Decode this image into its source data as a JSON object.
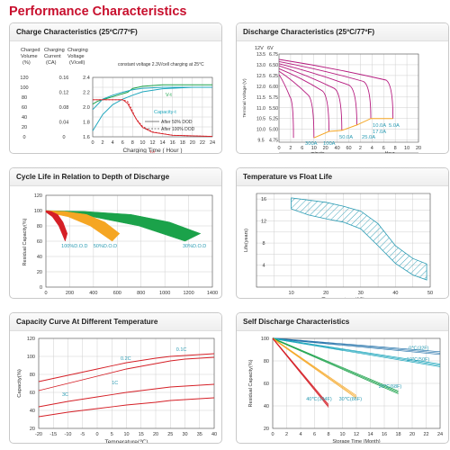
{
  "page_title": "Performance Characteristics",
  "colors": {
    "title": "#c8102e",
    "red": "#d51f26",
    "magenta": "#b5197e",
    "cyan": "#1fa7bd",
    "green": "#1ba24a",
    "orange": "#f5a623",
    "dark": "#333333"
  },
  "chart_data": [
    {
      "id": "charge",
      "type": "line",
      "title": "Charge Characteristics (25ºC/77ºF)",
      "col_labels": [
        "Charged",
        "Charging",
        "Charging"
      ],
      "col_labels2": [
        "Volume",
        "Current",
        "Voltage"
      ],
      "col_units": [
        "(%)",
        "(CA)",
        "(V/cell)"
      ],
      "annotation": "constant voltage 2.3V/cell charging at 25°C",
      "xlabel": "Charging Time ( Hour )",
      "x_ticks": [
        0,
        2,
        4,
        6,
        8,
        10,
        12,
        14,
        16,
        18,
        20,
        22,
        24
      ],
      "xlim": [
        0,
        24
      ],
      "left_ticks": [
        "120",
        "100",
        "80",
        "60",
        "40",
        "20",
        "0"
      ],
      "mid_ticks": [
        "0.16",
        "0.12",
        "0.08",
        "0.04",
        "0"
      ],
      "right_ticks": [
        "2.4",
        "2.2",
        "2.0",
        "1.8",
        "1.6"
      ],
      "series_labels": [
        "V-t",
        "Capacity-t",
        "I-t"
      ],
      "legend": [
        "After 50% DOD",
        "After 100% DOD"
      ],
      "series": [
        {
          "x": [
            0,
            1,
            3,
            5,
            7,
            8,
            10,
            14,
            20,
            24
          ],
          "y": [
            2.04,
            2.08,
            2.12,
            2.16,
            2.2,
            2.25,
            2.28,
            2.3,
            2.3,
            2.3
          ]
        },
        {
          "x": [
            0,
            2,
            4,
            6,
            8,
            10,
            14,
            20,
            24
          ],
          "y": [
            55,
            76,
            84,
            90,
            95,
            98,
            100,
            100,
            100
          ]
        },
        {
          "x": [
            0,
            2,
            4,
            6,
            8,
            10,
            14,
            20,
            24
          ],
          "y": [
            12,
            45,
            65,
            76,
            84,
            91,
            97,
            100,
            100
          ]
        },
        {
          "x": [
            0,
            4,
            6,
            7,
            8,
            9,
            10,
            12,
            16,
            24
          ],
          "y": [
            0.1,
            0.1,
            0.1,
            0.09,
            0.065,
            0.042,
            0.025,
            0.012,
            0.004,
            0.001
          ]
        },
        {
          "x": [
            0,
            5,
            6,
            7,
            7.8,
            8.6,
            10,
            12,
            16,
            24
          ],
          "y": [
            0.1,
            0.1,
            0.1,
            0.095,
            0.075,
            0.05,
            0.028,
            0.013,
            0.004,
            0.001
          ]
        }
      ]
    },
    {
      "id": "discharge",
      "type": "line",
      "title": "Discharge Characteristics (25ºC/77ºF)",
      "axis_top": [
        "12V",
        "6V"
      ],
      "ylabel": "Terminal Voltage (V)",
      "xlabel": "Discharging Time",
      "x_units": [
        "minute",
        "Hour"
      ],
      "x_ticks": [
        "0",
        "2",
        "6",
        "10",
        "20",
        "40",
        "60",
        "2",
        "4",
        "6",
        "8",
        "10",
        "20"
      ],
      "y12_ticks": [
        "13.5",
        "13.0",
        "12.5",
        "12.0",
        "11.5",
        "11.0",
        "10.5",
        "10.0",
        "9.5"
      ],
      "y6_ticks": [
        "6.75",
        "6.50",
        "6.25",
        "6.00",
        "5.75",
        "5.50",
        "5.25",
        "5.00",
        "4.75"
      ],
      "ylim": [
        9.4,
        13.5
      ],
      "curve_labels": [
        "10.0A",
        "5.0A",
        "17.0A",
        "25.0A",
        "50.0A",
        "100A",
        "300A"
      ],
      "series": [
        {
          "name": "300A",
          "end_x": 1.25,
          "end_v": 9.6
        },
        {
          "name": "100A",
          "end_x": 3.0,
          "end_v": 9.6
        },
        {
          "name": "50.0A",
          "end_x": 4.3,
          "end_v": 9.9
        },
        {
          "name": "25.0A",
          "end_x": 5.4,
          "end_v": 9.95
        },
        {
          "name": "17.0A",
          "end_x": 6.7,
          "end_v": 10.2
        },
        {
          "name": "10.0A",
          "end_x": 7.9,
          "end_v": 10.5
        },
        {
          "name": "5.0A",
          "end_x": 9.8,
          "end_v": 10.5
        }
      ]
    },
    {
      "id": "cycle",
      "type": "area",
      "title": "Cycle Life in Relation to Depth of Discharge",
      "ylabel": "Residual Capacity(%)",
      "xlabel": "Cycle Time",
      "x_ticks": [
        0,
        200,
        400,
        600,
        800,
        1000,
        1200,
        1400
      ],
      "y_ticks": [
        0,
        20,
        40,
        60,
        80,
        100,
        120
      ],
      "xlim": [
        0,
        1400
      ],
      "ylim": [
        0,
        120
      ],
      "series": [
        {
          "name": "100%D.O.D",
          "label": "100%D.O.D",
          "color": "#d51f26",
          "end": 180
        },
        {
          "name": "50%D.O.D",
          "label": "50%D.O.D",
          "color": "#f5a623",
          "end": 620
        },
        {
          "name": "30%D.O.D",
          "label": "30%D.O.D",
          "color": "#1ba24a",
          "end": 1300
        }
      ]
    },
    {
      "id": "float",
      "type": "area",
      "title": "Temperature vs Float Life",
      "ylabel": "Life(years)",
      "xlabel": "Temperature(℃)",
      "x_ticks": [
        10,
        20,
        30,
        40,
        50
      ],
      "y_ticks": [
        4,
        8,
        12,
        16
      ],
      "xlim": [
        0,
        50
      ],
      "ylim": [
        0,
        17
      ],
      "upper": {
        "x": [
          10,
          20,
          25,
          30,
          35,
          40,
          45,
          49
        ],
        "y": [
          16.2,
          15.4,
          14.7,
          13.8,
          11.5,
          7.5,
          5.2,
          4.2
        ]
      },
      "lower": {
        "x": [
          10,
          15,
          20,
          25,
          30,
          35,
          40,
          45,
          49
        ],
        "y": [
          14.2,
          13.1,
          12.4,
          11.8,
          10.6,
          7.5,
          4.3,
          2.2,
          1.3
        ]
      }
    },
    {
      "id": "capacity_temp",
      "type": "line",
      "title": "Capacity Curve At Different Temperature",
      "ylabel": "Capacity(%)",
      "xlabel": "Temperature(℃)",
      "x_ticks": [
        -20,
        -15,
        -10,
        -5,
        0,
        5,
        10,
        15,
        20,
        25,
        30,
        35,
        40
      ],
      "y_ticks": [
        20,
        40,
        60,
        80,
        100,
        120
      ],
      "xlim": [
        -20,
        40
      ],
      "ylim": [
        20,
        120
      ],
      "series": [
        {
          "name": "0.1C",
          "label": "0.1C",
          "x": [
            -20,
            -10,
            0,
            10,
            20,
            25,
            30,
            40
          ],
          "y": [
            72,
            79,
            86,
            93,
            98,
            100,
            101,
            103
          ]
        },
        {
          "name": "0.2C",
          "label": "0.2C",
          "x": [
            -20,
            -10,
            0,
            10,
            20,
            25,
            30,
            40
          ],
          "y": [
            62,
            70,
            78,
            86,
            92,
            95,
            97,
            99
          ]
        },
        {
          "name": "1C",
          "label": "1C",
          "x": [
            -20,
            -10,
            0,
            10,
            20,
            25,
            30,
            40
          ],
          "y": [
            44,
            50,
            55,
            60,
            64,
            66,
            67,
            69
          ]
        },
        {
          "name": "3C",
          "label": "3C",
          "x": [
            -20,
            -10,
            0,
            10,
            20,
            25,
            30,
            40
          ],
          "y": [
            33,
            38,
            42,
            46,
            49,
            51,
            52,
            54
          ]
        }
      ]
    },
    {
      "id": "self_discharge",
      "type": "line",
      "title": "Self Discharge Characteristics",
      "ylabel": "Residual Capacity(%)",
      "xlabel": "Storage Time (Month)",
      "x_ticks": [
        0,
        2,
        4,
        6,
        8,
        10,
        12,
        14,
        16,
        18,
        20,
        22,
        24
      ],
      "y_ticks": [
        20,
        40,
        60,
        80,
        100
      ],
      "xlim": [
        0,
        24
      ],
      "ylim": [
        20,
        100
      ],
      "series": [
        {
          "name": "0℃(32F)",
          "label": "0℃(32F)",
          "color": "#1f6fa8",
          "x": [
            0,
            24
          ],
          "y": [
            100,
            87
          ]
        },
        {
          "name": "10℃(50F)",
          "label": "10℃(50F)",
          "color": "#1fa7bd",
          "x": [
            0,
            24
          ],
          "y": [
            100,
            76
          ]
        },
        {
          "name": "20℃(68F)",
          "label": "20℃(68F)",
          "color": "#1ba24a",
          "x": [
            0,
            18
          ],
          "y": [
            100,
            52
          ]
        },
        {
          "name": "30℃(86F)",
          "label": "30℃(86F)",
          "color": "#f5a623",
          "x": [
            0,
            12
          ],
          "y": [
            100,
            48
          ]
        },
        {
          "name": "40℃(104F)",
          "label": "40℃(104F)",
          "color": "#d51f26",
          "x": [
            0,
            8
          ],
          "y": [
            100,
            40
          ]
        }
      ]
    }
  ]
}
